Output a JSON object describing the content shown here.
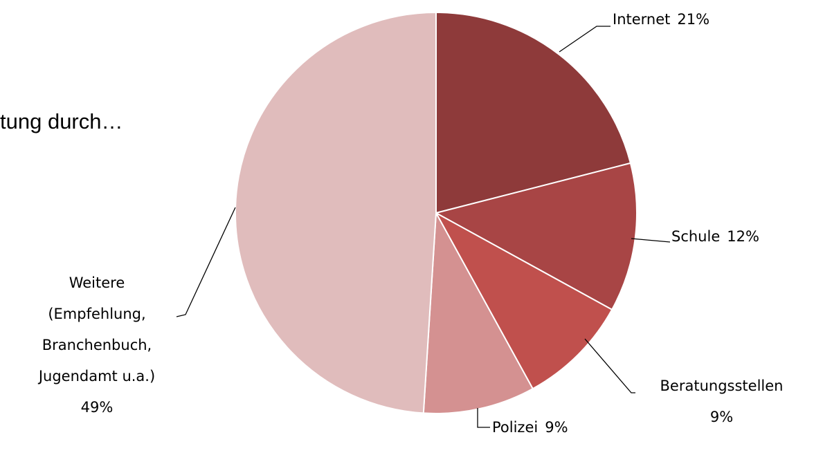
{
  "chart_data": {
    "type": "pie",
    "title": "tung durch…",
    "categories": [
      "Internet",
      "Schule",
      "Beratungsstellen",
      "Polizei",
      "Weitere (Empfehlung, Branchenbuch, Jugendamt u.a.)"
    ],
    "values": [
      21,
      12,
      9,
      9,
      49
    ],
    "value_labels": [
      "21%",
      "12%",
      "9%",
      "9%",
      "49%"
    ],
    "colors": [
      "#8e3a3a",
      "#a84545",
      "#c0504d",
      "#d49191",
      "#e0bcbc"
    ]
  }
}
